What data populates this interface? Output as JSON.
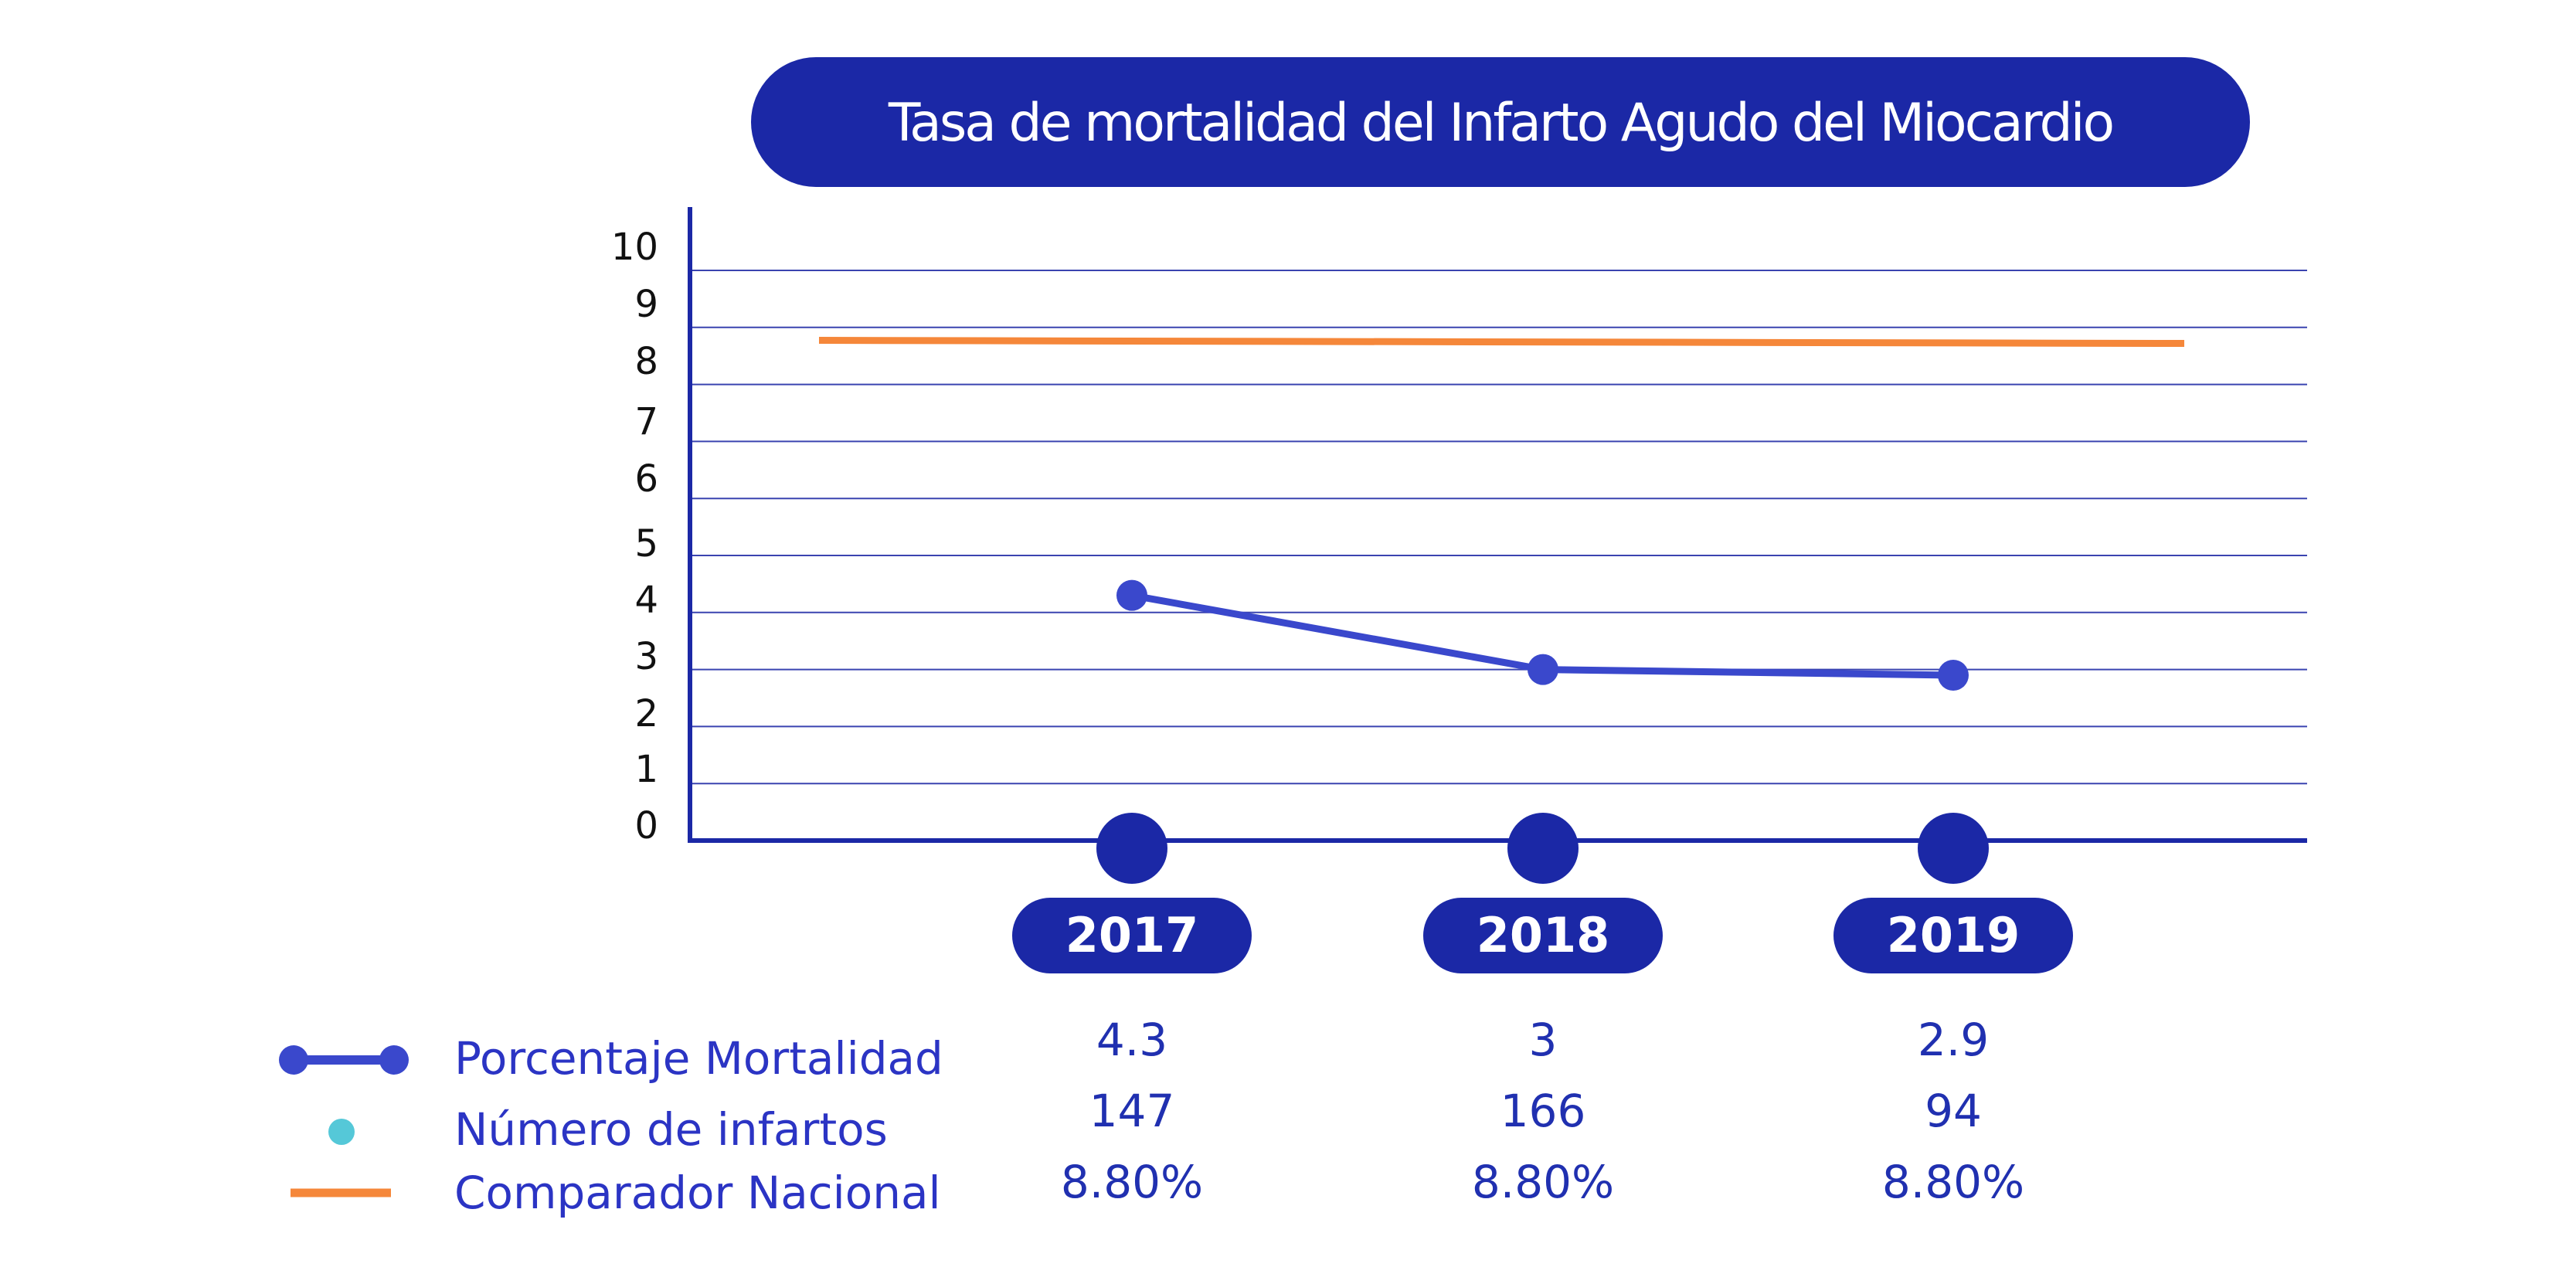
{
  "chart_data": {
    "type": "line",
    "title": "Tasa de mortalidad del Infarto Agudo del Miocardio",
    "x": [
      "2017",
      "2018",
      "2019"
    ],
    "y_ticks": [
      "0",
      "1",
      "2",
      "3",
      "4",
      "5",
      "6",
      "7",
      "8",
      "9",
      "10"
    ],
    "ylim": [
      0,
      11
    ],
    "grid": true,
    "series": [
      {
        "name": "Porcentaje Mortalidad",
        "type": "line-markers",
        "color": "#3a48cc",
        "values": [
          4.3,
          3,
          2.9
        ],
        "labels": [
          "4.3",
          "3",
          "2.9"
        ]
      },
      {
        "name": "Número de infartos",
        "type": "points",
        "color": "#55c8d8",
        "values": [
          147,
          166,
          94
        ],
        "labels": [
          "147",
          "166",
          "94"
        ]
      },
      {
        "name": "Comparador Nacional",
        "type": "line",
        "color": "#f5873a",
        "values": [
          8.8,
          8.8,
          8.8
        ],
        "labels": [
          "8.80%",
          "8.80%",
          "8.80%"
        ]
      }
    ],
    "legend_position": "bottom-left"
  },
  "colors": {
    "navy": "#1b28a6",
    "grid": "#3a44b0",
    "axis": "#1b28a6"
  }
}
